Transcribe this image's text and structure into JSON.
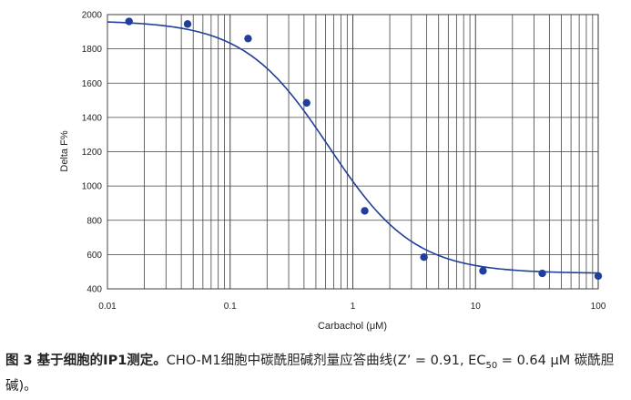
{
  "chart_data": {
    "type": "scatter",
    "xscale": "log",
    "xlim": [
      0.01,
      100
    ],
    "ylim": [
      400,
      2000
    ],
    "xlabel": "Carbachol (μM)",
    "ylabel": "Delta F%",
    "x_ticks": [
      {
        "v": 0.01,
        "label": "0.01"
      },
      {
        "v": 0.1,
        "label": "0.1"
      },
      {
        "v": 1,
        "label": "1"
      },
      {
        "v": 10,
        "label": "10"
      },
      {
        "v": 100,
        "label": "100"
      }
    ],
    "y_ticks": [
      400,
      600,
      800,
      1000,
      1200,
      1400,
      1600,
      1800,
      2000
    ],
    "grid": true,
    "series": [
      {
        "points": [
          {
            "x": 0.015,
            "y": 1960
          },
          {
            "x": 0.045,
            "y": 1945
          },
          {
            "x": 0.14,
            "y": 1860
          },
          {
            "x": 0.42,
            "y": 1485
          },
          {
            "x": 1.25,
            "y": 855
          },
          {
            "x": 3.8,
            "y": 585
          },
          {
            "x": 11.5,
            "y": 505
          },
          {
            "x": 35,
            "y": 490
          },
          {
            "x": 100,
            "y": 475
          }
        ],
        "fit": {
          "model": "four-parameter logistic",
          "top": 1965,
          "bottom": 490,
          "ec50": 0.64,
          "hill": 1.25
        }
      }
    ],
    "colors": {
      "series": "#1f3f9a",
      "grid": "#444444"
    }
  },
  "caption": {
    "figure_label": "图 3 基于细胞的IP1测定。",
    "text": "CHO-M1细胞中碳酰胆碱剂量应答曲线(Z’ = 0.91, EC",
    "subscript": "50",
    "text_after": " = 0.64 μM 碳酰胆碱)。"
  }
}
